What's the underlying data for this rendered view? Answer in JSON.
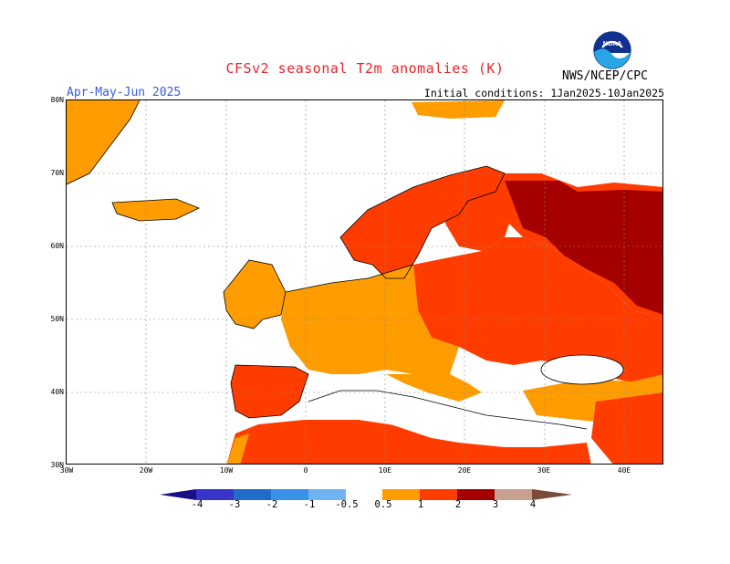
{
  "header": {
    "title": "CFSv2 seasonal T2m anomalies (K)",
    "period": "Apr-May-Jun 2025",
    "initial_conditions": "Initial conditions: 1Jan2025-10Jan2025",
    "org": "NWS/NCEP/CPC",
    "logo_text": "NOAA"
  },
  "axes": {
    "lat_labels": [
      "80N",
      "70N",
      "60N",
      "50N",
      "40N",
      "30N"
    ],
    "lon_labels": [
      "30W",
      "20W",
      "10W",
      "0",
      "10E",
      "20E",
      "30E",
      "40E"
    ]
  },
  "legend": {
    "labels": [
      "-4",
      "-3",
      "-2",
      "-1",
      "-0.5",
      "0.5",
      "1",
      "2",
      "3",
      "4"
    ],
    "colors": {
      "lt_-4": "#1b0f85",
      "-4_-3": "#3833c9",
      "-3_-2": "#1f6ccb",
      "-2_-1": "#3a92e6",
      "-1_-0.5": "#6fb4f2",
      "neutral": "#ffffff",
      "0.5_1": "#ff9c00",
      "1_2": "#ff3c00",
      "2_3": "#a50000",
      "3_4": "#c8a090",
      "gt_4": "#7a4a3a"
    }
  },
  "map_regions": {
    "land_outline": "#000000",
    "gridlines": "dotted grey"
  }
}
